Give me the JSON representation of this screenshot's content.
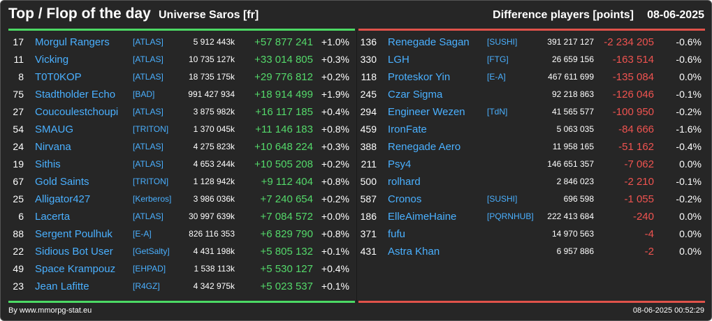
{
  "header": {
    "title": "Top / Flop of the day",
    "universe": "Universe Saros [fr]",
    "difference_label": "Difference players [points]",
    "date": "08-06-2025"
  },
  "top": [
    {
      "rank": "17",
      "name": "Morgul Rangers",
      "tag": "[ATLAS]",
      "points": "5 912 443k",
      "diff": "+57 877 241",
      "pct": "+1.0%"
    },
    {
      "rank": "11",
      "name": "Vicking",
      "tag": "[ATLAS]",
      "points": "10 735 127k",
      "diff": "+33 014 805",
      "pct": "+0.3%"
    },
    {
      "rank": "8",
      "name": "T0T0KOP",
      "tag": "[ATLAS]",
      "points": "18 735 175k",
      "diff": "+29 776 812",
      "pct": "+0.2%"
    },
    {
      "rank": "75",
      "name": "Stadtholder Echo",
      "tag": "[BAD]",
      "points": "991 427 934",
      "diff": "+18 914 499",
      "pct": "+1.9%"
    },
    {
      "rank": "27",
      "name": "Coucoulestchoupi",
      "tag": "[ATLAS]",
      "points": "3 875 982k",
      "diff": "+16 117 185",
      "pct": "+0.4%"
    },
    {
      "rank": "54",
      "name": "SMAUG",
      "tag": "[TRITON]",
      "points": "1 370 045k",
      "diff": "+11 146 183",
      "pct": "+0.8%"
    },
    {
      "rank": "24",
      "name": "Nirvana",
      "tag": "[ATLAS]",
      "points": "4 275 823k",
      "diff": "+10 648 224",
      "pct": "+0.3%"
    },
    {
      "rank": "19",
      "name": "Sithis",
      "tag": "[ATLAS]",
      "points": "4 653 244k",
      "diff": "+10 505 208",
      "pct": "+0.2%"
    },
    {
      "rank": "67",
      "name": "Gold Saints",
      "tag": "[TRITON]",
      "points": "1 128 942k",
      "diff": "+9 112 404",
      "pct": "+0.8%"
    },
    {
      "rank": "25",
      "name": "Alligator427",
      "tag": "[Kerberos]",
      "points": "3 986 036k",
      "diff": "+7 240 654",
      "pct": "+0.2%"
    },
    {
      "rank": "6",
      "name": "Lacerta",
      "tag": "[ATLAS]",
      "points": "30 997 639k",
      "diff": "+7 084 572",
      "pct": "+0.0%"
    },
    {
      "rank": "88",
      "name": "Sergent Poulhuk",
      "tag": "[E-A]",
      "points": "826 116 353",
      "diff": "+6 829 790",
      "pct": "+0.8%"
    },
    {
      "rank": "22",
      "name": "Sidious Bot User",
      "tag": "[GetSalty]",
      "points": "4 431 198k",
      "diff": "+5 805 132",
      "pct": "+0.1%"
    },
    {
      "rank": "49",
      "name": "Space Krampouz",
      "tag": "[EHPAD]",
      "points": "1 538 113k",
      "diff": "+5 530 127",
      "pct": "+0.4%"
    },
    {
      "rank": "23",
      "name": "Jean Lafitte",
      "tag": "[R4GZ]",
      "points": "4 342 975k",
      "diff": "+5 023 537",
      "pct": "+0.1%"
    }
  ],
  "flop": [
    {
      "rank": "136",
      "name": "Renegade Sagan",
      "tag": "[SUSHI]",
      "points": "391 217 127",
      "diff": "-2 234 205",
      "pct": "-0.6%"
    },
    {
      "rank": "330",
      "name": "LGH",
      "tag": "[FTG]",
      "points": "26 659 156",
      "diff": "-163 514",
      "pct": "-0.6%"
    },
    {
      "rank": "118",
      "name": "Proteskor Yin",
      "tag": "[E-A]",
      "points": "467 611 699",
      "diff": "-135 084",
      "pct": "0.0%"
    },
    {
      "rank": "245",
      "name": "Czar Sigma",
      "tag": "",
      "points": "92 218 863",
      "diff": "-126 046",
      "pct": "-0.1%"
    },
    {
      "rank": "294",
      "name": "Engineer Wezen",
      "tag": "[TdN]",
      "points": "41 565 577",
      "diff": "-100 950",
      "pct": "-0.2%"
    },
    {
      "rank": "459",
      "name": "IronFate",
      "tag": "",
      "points": "5 063 035",
      "diff": "-84 666",
      "pct": "-1.6%"
    },
    {
      "rank": "388",
      "name": "Renegade Aero",
      "tag": "",
      "points": "11 958 165",
      "diff": "-51 162",
      "pct": "-0.4%"
    },
    {
      "rank": "211",
      "name": "Psy4",
      "tag": "",
      "points": "146 651 357",
      "diff": "-7 062",
      "pct": "0.0%"
    },
    {
      "rank": "500",
      "name": "rolhard",
      "tag": "",
      "points": "2 846 023",
      "diff": "-2 210",
      "pct": "-0.1%"
    },
    {
      "rank": "587",
      "name": "Cronos",
      "tag": "[SUSHI]",
      "points": "696 598",
      "diff": "-1 055",
      "pct": "-0.2%"
    },
    {
      "rank": "186",
      "name": "ElleAimeHaine",
      "tag": "[PQRNHUB]",
      "points": "222 413 684",
      "diff": "-240",
      "pct": "0.0%"
    },
    {
      "rank": "371",
      "name": "fufu",
      "tag": "",
      "points": "14 970 563",
      "diff": "-4",
      "pct": "0.0%"
    },
    {
      "rank": "431",
      "name": "Astra Khan",
      "tag": "",
      "points": "6 957 886",
      "diff": "-2",
      "pct": "0.0%"
    }
  ],
  "footer": {
    "credit": "By www.mmorpg-stat.eu",
    "timestamp": "08-06-2025 00:52:29"
  },
  "colors": {
    "background": "#262626",
    "top_accent": "#4cd964",
    "flop_accent": "#e0524a",
    "name_link": "#4ab0ff"
  }
}
